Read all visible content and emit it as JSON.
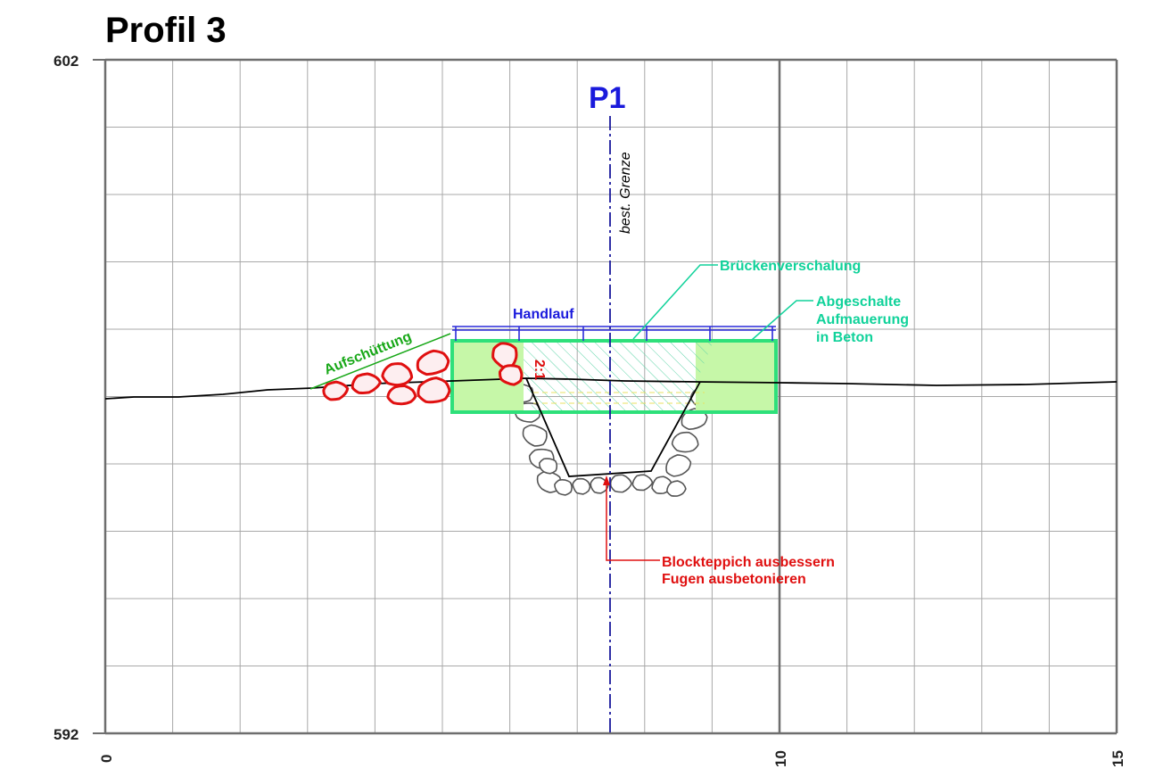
{
  "title": "Profil 3",
  "axes": {
    "y_ticks": [
      "602",
      "592"
    ],
    "x_ticks": [
      "0",
      "10",
      "15"
    ]
  },
  "labels": {
    "p1": "P1",
    "grenze": "best. Grenze",
    "handlauf": "Handlauf",
    "aufschuettung": "Aufschüttung",
    "slope": "2:1",
    "brueckenverschalung": "Brückenverschalung",
    "abgeschalte_1": "Abgeschalte",
    "abgeschalte_2": "Aufmauerung",
    "abgeschalte_3": "in Beton",
    "block_1": "Blockteppich ausbessern",
    "block_2": "Fugen ausbetonieren"
  },
  "colors": {
    "p1": "#1a1adc",
    "handlauf": "#1a1adc",
    "green_fill": "#c6f7a8",
    "green_border": "#2ee07a",
    "teal_text": "#10d29a",
    "aufschuettung": "#18a818",
    "red": "#e01010",
    "grid_minor": "#a8a8a8",
    "grid_major": "#6e6e6e"
  }
}
